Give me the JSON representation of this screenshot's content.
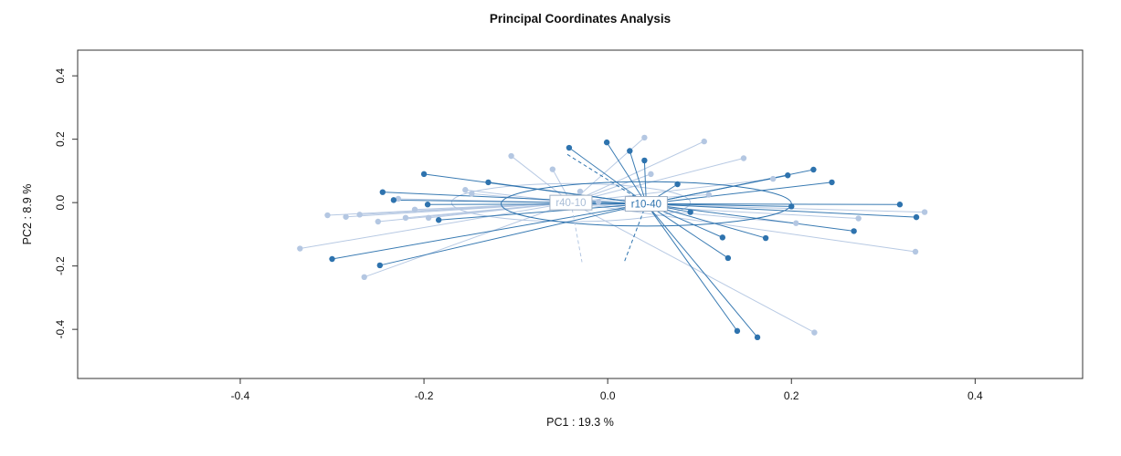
{
  "chart_data": {
    "type": "scatter",
    "title": "Principal Coordinates Analysis",
    "xlabel": "PC1 :  19.3 %",
    "ylabel": "PC2 :  8.9 %",
    "xlim": [
      -0.577,
      0.517
    ],
    "ylim": [
      -0.555,
      0.481
    ],
    "xticks": [
      -0.4,
      -0.2,
      0.0,
      0.2,
      0.4
    ],
    "yticks": [
      -0.4,
      -0.2,
      0.0,
      0.2,
      0.4
    ],
    "grid": false,
    "legend_position": "none",
    "plot_style": "spider-with-ellipses",
    "axis_color": "#333333",
    "groups": [
      {
        "name": "r40-10",
        "color": "#b4c7e2",
        "label_color": "#a9bdd6",
        "centroid": [
          -0.04,
          0.0
        ],
        "ellipse": {
          "cx": -0.04,
          "cy": 0.0,
          "rx": 0.13,
          "ry": 0.06
        },
        "points": [
          [
            -0.335,
            -0.145
          ],
          [
            -0.305,
            -0.04
          ],
          [
            -0.285,
            -0.045
          ],
          [
            -0.27,
            -0.038
          ],
          [
            -0.265,
            -0.235
          ],
          [
            -0.25,
            -0.06
          ],
          [
            -0.228,
            0.012
          ],
          [
            -0.22,
            -0.048
          ],
          [
            -0.21,
            -0.022
          ],
          [
            -0.195,
            -0.048
          ],
          [
            -0.155,
            0.04
          ],
          [
            -0.148,
            0.028
          ],
          [
            -0.105,
            0.147
          ],
          [
            -0.06,
            0.105
          ],
          [
            -0.03,
            0.035
          ],
          [
            -0.01,
            0.002
          ],
          [
            0.04,
            0.205
          ],
          [
            0.047,
            0.09
          ],
          [
            0.105,
            0.193
          ],
          [
            0.11,
            0.025
          ],
          [
            0.148,
            0.14
          ],
          [
            0.18,
            0.075
          ],
          [
            0.205,
            -0.065
          ],
          [
            0.273,
            -0.05
          ],
          [
            0.225,
            -0.41
          ],
          [
            0.335,
            -0.155
          ],
          [
            0.345,
            -0.03
          ]
        ]
      },
      {
        "name": "r10-40",
        "color": "#2e73ae",
        "label_color": "#2e73ae",
        "centroid": [
          0.042,
          -0.004
        ],
        "ellipse": {
          "cx": 0.042,
          "cy": -0.004,
          "rx": 0.158,
          "ry": 0.07
        },
        "points": [
          [
            -0.3,
            -0.178
          ],
          [
            -0.248,
            -0.198
          ],
          [
            -0.245,
            0.033
          ],
          [
            -0.233,
            0.008
          ],
          [
            -0.2,
            0.09
          ],
          [
            -0.196,
            -0.006
          ],
          [
            -0.184,
            -0.055
          ],
          [
            -0.13,
            0.064
          ],
          [
            -0.042,
            0.173
          ],
          [
            -0.001,
            0.19
          ],
          [
            0.024,
            0.163
          ],
          [
            0.04,
            0.133
          ],
          [
            0.076,
            0.058
          ],
          [
            0.09,
            -0.03
          ],
          [
            0.125,
            -0.11
          ],
          [
            0.131,
            -0.175
          ],
          [
            0.141,
            -0.405
          ],
          [
            0.163,
            -0.425
          ],
          [
            0.172,
            -0.112
          ],
          [
            0.196,
            0.086
          ],
          [
            0.2,
            -0.012
          ],
          [
            0.224,
            0.104
          ],
          [
            0.244,
            0.064
          ],
          [
            0.268,
            -0.09
          ],
          [
            0.318,
            -0.006
          ],
          [
            0.336,
            -0.046
          ]
        ]
      }
    ],
    "dashed_lines": [
      {
        "group": 0,
        "x1": -0.04,
        "y1": 0.0,
        "x2": -0.028,
        "y2": -0.188
      },
      {
        "group": 1,
        "x1": 0.042,
        "y1": -0.004,
        "x2": 0.018,
        "y2": -0.188
      },
      {
        "group": 1,
        "x1": 0.042,
        "y1": -0.004,
        "x2": -0.044,
        "y2": 0.152
      }
    ]
  }
}
